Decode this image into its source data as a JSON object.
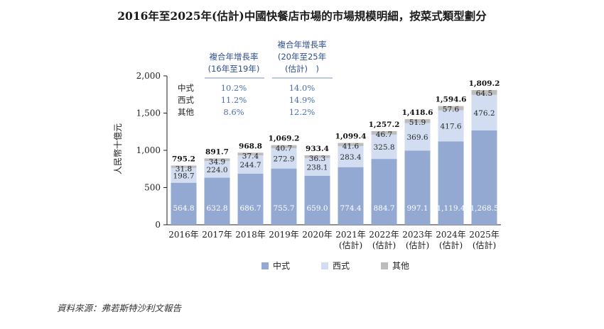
{
  "chart_data": {
    "type": "bar",
    "stacked": true,
    "title": "2016年至2025年(估計)中國快餐店市場的市場規模明細，按菜式類型劃分",
    "ylabel": "人民幣十億元",
    "ylim": [
      0,
      2000
    ],
    "yticks": [
      "0",
      "500",
      "1,000",
      "1,500",
      "2,000"
    ],
    "ytick_values": [
      0,
      500,
      1000,
      1500,
      2000
    ],
    "categories": [
      [
        "2016年"
      ],
      [
        "2017年"
      ],
      [
        "2018年"
      ],
      [
        "2019年"
      ],
      [
        "2020年"
      ],
      [
        "2021年",
        "(估計)"
      ],
      [
        "2022年",
        "(估計)"
      ],
      [
        "2023年",
        "(估計)"
      ],
      [
        "2024年",
        "(估計)"
      ],
      [
        "2025年",
        "(估計)"
      ]
    ],
    "series": [
      {
        "name": "中式",
        "color": "#93a9d2",
        "text_color": "#ffffff",
        "values": [
          564.8,
          632.8,
          686.7,
          755.7,
          659.0,
          774.4,
          884.7,
          997.1,
          1119.4,
          1268.5
        ],
        "labels": [
          "564.8",
          "632.8",
          "686.7",
          "755.7",
          "659.0",
          "774.4",
          "884.7",
          "997.1",
          "1,119.4",
          "1,268.5"
        ]
      },
      {
        "name": "西式",
        "color": "#d2ddf1",
        "text_color": "#2a2a2a",
        "values": [
          198.7,
          224.0,
          244.7,
          272.9,
          238.1,
          283.4,
          325.8,
          369.6,
          417.6,
          476.2
        ],
        "labels": [
          "198.7",
          "224.0",
          "244.7",
          "272.9",
          "238.1",
          "283.4",
          "325.8",
          "369.6",
          "417.6",
          "476.2"
        ]
      },
      {
        "name": "其他",
        "color": "#bcbcbc",
        "text_color": "#1a1a1a",
        "values": [
          31.8,
          34.9,
          37.4,
          40.7,
          36.3,
          41.6,
          46.7,
          51.9,
          57.6,
          64.5
        ],
        "labels": [
          "31.8",
          "34.9",
          "37.4",
          "40.7",
          "36.3",
          "41.6",
          "46.7",
          "51.9",
          "57.6",
          "64.5"
        ]
      }
    ],
    "totals": [
      795.2,
      891.7,
      968.8,
      1069.2,
      933.4,
      1099.4,
      1257.2,
      1418.6,
      1594.6,
      1809.2
    ],
    "total_labels": [
      "795.2",
      "891.7",
      "968.8",
      "1,069.2",
      "933.4",
      "1,099.4",
      "1,257.2",
      "1,418.6",
      "1,594.6",
      "1,809.2"
    ],
    "cagr_table": {
      "header_1": [
        "複合年增長率",
        "(16年至19年)"
      ],
      "header_2": [
        "複合年增長率",
        "(20年至25年",
        "(估計)　)"
      ],
      "rows": [
        {
          "label": "中式",
          "v1": "10.2%",
          "v2": "14.0%"
        },
        {
          "label": "西式",
          "v1": "11.2%",
          "v2": "14.9%"
        },
        {
          "label": "其他",
          "v1": "8.6%",
          "v2": "12.2%"
        }
      ]
    },
    "legend": [
      "中式",
      "西式",
      "其他"
    ],
    "legend_position": "bottom"
  },
  "source": "資料來源：弗若斯特沙利文報告"
}
